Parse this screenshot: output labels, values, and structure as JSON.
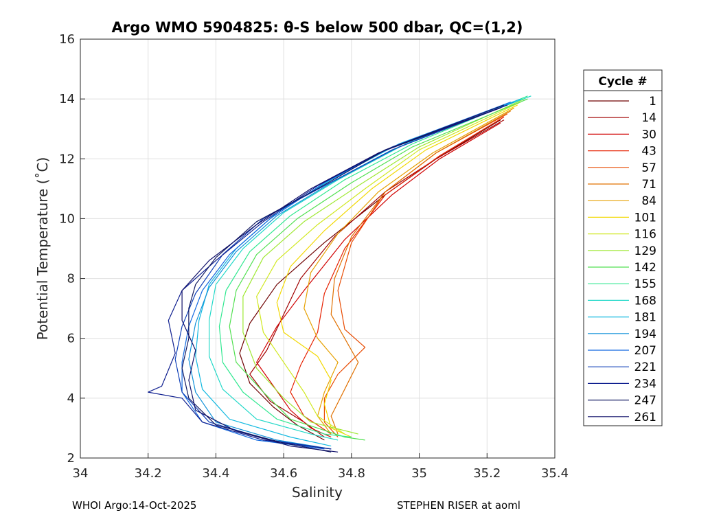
{
  "chart_data": {
    "type": "line",
    "title": "Argo WMO 5904825: θ-S below 500 dbar,  QC=(1,2)",
    "xlabel": "Salinity",
    "ylabel": "Potential Temperature (˚C)",
    "xlim": [
      34.0,
      35.4
    ],
    "ylim": [
      2,
      16
    ],
    "xticks": [
      "34",
      "34.2",
      "34.4",
      "34.6",
      "34.8",
      "35",
      "35.2",
      "35.4"
    ],
    "yticks": [
      "2",
      "4",
      "6",
      "8",
      "10",
      "12",
      "14",
      "16"
    ],
    "grid": true,
    "legend": {
      "title": "Cycle #",
      "placement": "right",
      "entries": [
        {
          "label": "1",
          "color": "#6e0000"
        },
        {
          "label": "14",
          "color": "#a00000"
        },
        {
          "label": "30",
          "color": "#d00000"
        },
        {
          "label": "43",
          "color": "#e62000"
        },
        {
          "label": "57",
          "color": "#e84a00"
        },
        {
          "label": "71",
          "color": "#e07000"
        },
        {
          "label": "84",
          "color": "#e6a000"
        },
        {
          "label": "101",
          "color": "#f2d800"
        },
        {
          "label": "116",
          "color": "#d0e820"
        },
        {
          "label": "129",
          "color": "#9ee830"
        },
        {
          "label": "142",
          "color": "#50e050"
        },
        {
          "label": "155",
          "color": "#30e890"
        },
        {
          "label": "168",
          "color": "#20d8c8"
        },
        {
          "label": "181",
          "color": "#10b8e0"
        },
        {
          "label": "194",
          "color": "#1090d8"
        },
        {
          "label": "207",
          "color": "#1068e0"
        },
        {
          "label": "221",
          "color": "#1040b8"
        },
        {
          "label": "234",
          "color": "#102090"
        },
        {
          "label": "247",
          "color": "#101860"
        },
        {
          "label": "261",
          "color": "#10106a"
        }
      ]
    },
    "series": [
      {
        "name": "1",
        "points": [
          [
            35.24,
            13.3
          ],
          [
            35.05,
            12.0
          ],
          [
            34.9,
            10.8
          ],
          [
            34.72,
            9.2
          ],
          [
            34.58,
            7.8
          ],
          [
            34.5,
            6.5
          ],
          [
            34.47,
            5.5
          ],
          [
            34.5,
            4.5
          ],
          [
            34.57,
            3.7
          ],
          [
            34.64,
            3.1
          ],
          [
            34.72,
            2.6
          ]
        ]
      },
      {
        "name": "14",
        "points": [
          [
            35.25,
            13.3
          ],
          [
            35.05,
            12.0
          ],
          [
            34.9,
            10.9
          ],
          [
            34.75,
            9.4
          ],
          [
            34.65,
            8.0
          ],
          [
            34.6,
            6.8
          ],
          [
            34.55,
            5.6
          ],
          [
            34.5,
            4.8
          ],
          [
            34.56,
            3.9
          ],
          [
            34.66,
            3.2
          ],
          [
            34.72,
            2.7
          ]
        ]
      },
      {
        "name": "30",
        "points": [
          [
            35.24,
            13.2
          ],
          [
            35.06,
            12.0
          ],
          [
            34.92,
            10.8
          ],
          [
            34.78,
            9.3
          ],
          [
            34.66,
            7.6
          ],
          [
            34.58,
            6.4
          ],
          [
            34.52,
            5.2
          ],
          [
            34.57,
            4.4
          ],
          [
            34.62,
            3.6
          ],
          [
            34.68,
            3.0
          ],
          [
            34.74,
            2.7
          ]
        ]
      },
      {
        "name": "43",
        "points": [
          [
            35.25,
            13.4
          ],
          [
            35.06,
            12.1
          ],
          [
            34.9,
            10.8
          ],
          [
            34.78,
            9.0
          ],
          [
            34.72,
            7.5
          ],
          [
            34.7,
            6.2
          ],
          [
            34.65,
            5.1
          ],
          [
            34.62,
            4.2
          ],
          [
            34.66,
            3.4
          ],
          [
            34.74,
            2.8
          ]
        ]
      },
      {
        "name": "57",
        "points": [
          [
            35.26,
            13.5
          ],
          [
            35.05,
            12.2
          ],
          [
            34.9,
            10.9
          ],
          [
            34.8,
            9.2
          ],
          [
            34.76,
            7.6
          ],
          [
            34.78,
            6.3
          ],
          [
            34.84,
            5.7
          ],
          [
            34.76,
            4.8
          ],
          [
            34.72,
            4.0
          ],
          [
            34.72,
            3.2
          ],
          [
            34.76,
            2.7
          ]
        ]
      },
      {
        "name": "71",
        "points": [
          [
            35.27,
            13.6
          ],
          [
            35.05,
            12.2
          ],
          [
            34.9,
            10.9
          ],
          [
            34.8,
            9.4
          ],
          [
            34.75,
            8.0
          ],
          [
            34.74,
            6.8
          ],
          [
            34.78,
            6.0
          ],
          [
            34.82,
            5.2
          ],
          [
            34.78,
            4.3
          ],
          [
            34.74,
            3.4
          ],
          [
            34.76,
            2.8
          ]
        ]
      },
      {
        "name": "84",
        "points": [
          [
            35.28,
            13.7
          ],
          [
            35.04,
            12.2
          ],
          [
            34.88,
            10.9
          ],
          [
            34.76,
            9.5
          ],
          [
            34.68,
            8.2
          ],
          [
            34.66,
            7.0
          ],
          [
            34.7,
            6.0
          ],
          [
            34.76,
            5.2
          ],
          [
            34.72,
            4.2
          ],
          [
            34.7,
            3.4
          ],
          [
            34.74,
            2.8
          ]
        ]
      },
      {
        "name": "101",
        "points": [
          [
            35.29,
            13.8
          ],
          [
            35.02,
            12.3
          ],
          [
            34.86,
            11.0
          ],
          [
            34.72,
            9.6
          ],
          [
            34.62,
            8.4
          ],
          [
            34.58,
            7.2
          ],
          [
            34.6,
            6.2
          ],
          [
            34.7,
            5.4
          ],
          [
            34.74,
            4.6
          ],
          [
            34.72,
            3.8
          ],
          [
            34.74,
            3.0
          ],
          [
            34.8,
            2.7
          ]
        ]
      },
      {
        "name": "116",
        "points": [
          [
            35.3,
            13.9
          ],
          [
            35.0,
            12.3
          ],
          [
            34.84,
            11.0
          ],
          [
            34.7,
            9.8
          ],
          [
            34.58,
            8.6
          ],
          [
            34.52,
            7.4
          ],
          [
            34.54,
            6.2
          ],
          [
            34.6,
            5.2
          ],
          [
            34.66,
            4.2
          ],
          [
            34.7,
            3.4
          ],
          [
            34.78,
            2.8
          ]
        ]
      },
      {
        "name": "129",
        "points": [
          [
            35.31,
            14.0
          ],
          [
            35.0,
            12.4
          ],
          [
            34.82,
            11.1
          ],
          [
            34.66,
            9.9
          ],
          [
            34.54,
            8.7
          ],
          [
            34.48,
            7.4
          ],
          [
            34.48,
            6.2
          ],
          [
            34.52,
            5.0
          ],
          [
            34.6,
            4.0
          ],
          [
            34.68,
            3.2
          ],
          [
            34.82,
            2.8
          ]
        ]
      },
      {
        "name": "142",
        "points": [
          [
            35.32,
            14.0
          ],
          [
            34.98,
            12.4
          ],
          [
            34.8,
            11.2
          ],
          [
            34.64,
            10.0
          ],
          [
            34.52,
            8.8
          ],
          [
            34.46,
            7.6
          ],
          [
            34.44,
            6.4
          ],
          [
            34.46,
            5.2
          ],
          [
            34.54,
            4.2
          ],
          [
            34.62,
            3.3
          ],
          [
            34.78,
            2.7
          ],
          [
            34.84,
            2.6
          ]
        ]
      },
      {
        "name": "155",
        "points": [
          [
            35.32,
            14.1
          ],
          [
            34.98,
            12.5
          ],
          [
            34.78,
            11.3
          ],
          [
            34.62,
            10.1
          ],
          [
            34.5,
            8.9
          ],
          [
            34.43,
            7.6
          ],
          [
            34.41,
            6.4
          ],
          [
            34.42,
            5.2
          ],
          [
            34.48,
            4.2
          ],
          [
            34.58,
            3.3
          ],
          [
            34.72,
            2.8
          ],
          [
            34.8,
            2.7
          ]
        ]
      },
      {
        "name": "168",
        "points": [
          [
            35.33,
            14.1
          ],
          [
            34.96,
            12.5
          ],
          [
            34.76,
            11.3
          ],
          [
            34.6,
            10.2
          ],
          [
            34.48,
            9.0
          ],
          [
            34.4,
            7.8
          ],
          [
            34.38,
            6.6
          ],
          [
            34.38,
            5.4
          ],
          [
            34.42,
            4.3
          ],
          [
            34.52,
            3.3
          ],
          [
            34.68,
            2.8
          ],
          [
            34.76,
            2.6
          ]
        ]
      },
      {
        "name": "181",
        "points": [
          [
            35.3,
            14.0
          ],
          [
            34.94,
            12.5
          ],
          [
            34.74,
            11.3
          ],
          [
            34.58,
            10.2
          ],
          [
            34.46,
            9.0
          ],
          [
            34.38,
            7.8
          ],
          [
            34.35,
            6.6
          ],
          [
            34.34,
            5.4
          ],
          [
            34.36,
            4.3
          ],
          [
            34.44,
            3.3
          ],
          [
            34.62,
            2.7
          ],
          [
            34.74,
            2.4
          ]
        ]
      },
      {
        "name": "194",
        "points": [
          [
            35.28,
            13.9
          ],
          [
            34.94,
            12.4
          ],
          [
            34.74,
            11.2
          ],
          [
            34.58,
            10.1
          ],
          [
            34.46,
            8.9
          ],
          [
            34.38,
            7.7
          ],
          [
            34.34,
            6.5
          ],
          [
            34.32,
            5.3
          ],
          [
            34.34,
            4.2
          ],
          [
            34.4,
            3.2
          ],
          [
            34.58,
            2.6
          ],
          [
            34.74,
            2.3
          ]
        ]
      },
      {
        "name": "207",
        "points": [
          [
            35.27,
            13.9
          ],
          [
            34.92,
            12.4
          ],
          [
            34.72,
            11.2
          ],
          [
            34.56,
            10.0
          ],
          [
            34.44,
            8.8
          ],
          [
            34.36,
            7.6
          ],
          [
            34.32,
            6.4
          ],
          [
            34.3,
            5.2
          ],
          [
            34.3,
            4.2
          ],
          [
            34.36,
            3.2
          ],
          [
            34.52,
            2.6
          ],
          [
            34.72,
            2.3
          ]
        ]
      },
      {
        "name": "221",
        "points": [
          [
            35.26,
            13.8
          ],
          [
            34.92,
            12.3
          ],
          [
            34.72,
            11.1
          ],
          [
            34.54,
            10.0
          ],
          [
            34.42,
            8.8
          ],
          [
            34.34,
            7.5
          ],
          [
            34.3,
            6.4
          ],
          [
            34.28,
            5.3
          ],
          [
            34.3,
            4.2
          ],
          [
            34.38,
            3.2
          ],
          [
            34.56,
            2.6
          ],
          [
            34.74,
            2.3
          ]
        ]
      },
      {
        "name": "234",
        "points": [
          [
            35.26,
            13.8
          ],
          [
            34.9,
            12.3
          ],
          [
            34.7,
            11.1
          ],
          [
            34.54,
            9.9
          ],
          [
            34.4,
            8.6
          ],
          [
            34.3,
            7.6
          ],
          [
            34.26,
            6.6
          ],
          [
            34.28,
            5.5
          ],
          [
            34.24,
            4.4
          ],
          [
            34.2,
            4.2
          ],
          [
            34.3,
            4.0
          ],
          [
            34.36,
            3.2
          ],
          [
            34.54,
            2.6
          ],
          [
            34.74,
            2.3
          ]
        ]
      },
      {
        "name": "247",
        "points": [
          [
            35.25,
            13.8
          ],
          [
            34.9,
            12.3
          ],
          [
            34.7,
            11.0
          ],
          [
            34.52,
            9.9
          ],
          [
            34.4,
            8.7
          ],
          [
            34.34,
            7.8
          ],
          [
            34.32,
            7.0
          ],
          [
            34.32,
            6.0
          ],
          [
            34.3,
            5.0
          ],
          [
            34.32,
            4.0
          ],
          [
            34.4,
            3.1
          ],
          [
            34.6,
            2.5
          ],
          [
            34.74,
            2.2
          ]
        ]
      },
      {
        "name": "261",
        "points": [
          [
            35.24,
            13.7
          ],
          [
            34.88,
            12.2
          ],
          [
            34.68,
            11.0
          ],
          [
            34.52,
            9.8
          ],
          [
            34.38,
            8.6
          ],
          [
            34.3,
            7.6
          ],
          [
            34.3,
            6.6
          ],
          [
            34.34,
            5.6
          ],
          [
            34.32,
            4.6
          ],
          [
            34.34,
            3.6
          ],
          [
            34.46,
            2.9
          ],
          [
            34.62,
            2.4
          ],
          [
            34.76,
            2.2
          ]
        ]
      }
    ]
  },
  "footer": {
    "left": "WHOI Argo:14-Oct-2025",
    "right": "STEPHEN RISER at aoml"
  }
}
